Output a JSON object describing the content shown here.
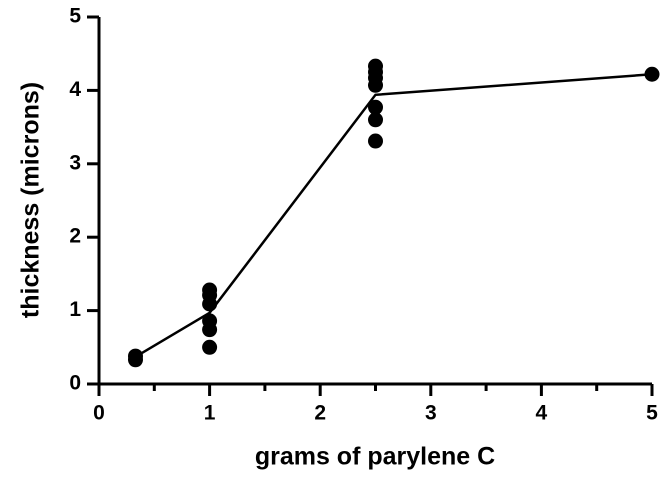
{
  "chart_data": {
    "type": "scatter",
    "xlabel": "grams of parylene C",
    "ylabel": "thickness (microns)",
    "xlim": [
      0,
      5
    ],
    "ylim": [
      0,
      5
    ],
    "xticks": [
      0,
      1,
      2,
      3,
      4,
      5
    ],
    "xminorticks": [
      0.5,
      1.5,
      2.5,
      3.5,
      4.5
    ],
    "yticks": [
      0,
      1,
      2,
      3,
      4,
      5
    ],
    "series": [
      {
        "kind": "points",
        "color": "#000000",
        "x": [
          0.33,
          0.33,
          1,
          1,
          1,
          1,
          1,
          1,
          2.5,
          2.5,
          2.5,
          2.5,
          2.5,
          2.5,
          2.5,
          5
        ],
        "values": [
          0.38,
          0.33,
          1.28,
          1.21,
          1.09,
          0.86,
          0.74,
          0.5,
          4.33,
          4.25,
          4.17,
          4.07,
          3.77,
          3.6,
          3.31,
          4.22
        ]
      },
      {
        "kind": "line",
        "color": "#000000",
        "x": [
          0.33,
          1,
          2.5,
          5
        ],
        "values": [
          0.37,
          0.97,
          3.94,
          4.22
        ]
      }
    ]
  }
}
